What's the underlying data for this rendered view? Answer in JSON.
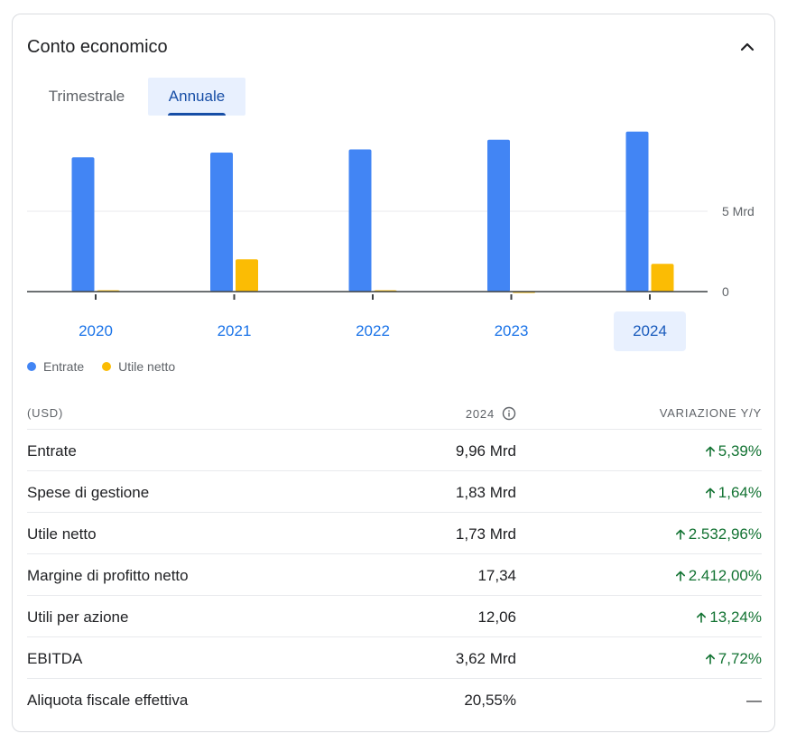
{
  "card": {
    "title": "Conto economico"
  },
  "tabs": [
    {
      "label": "Trimestrale",
      "selected": false
    },
    {
      "label": "Annuale",
      "selected": true
    }
  ],
  "chart_data": {
    "type": "bar",
    "categories": [
      "2020",
      "2021",
      "2022",
      "2023",
      "2024"
    ],
    "selected_category": "2024",
    "series": [
      {
        "name": "Entrate",
        "color": "#4285f4",
        "values": [
          8.36,
          8.65,
          8.85,
          9.45,
          9.96
        ]
      },
      {
        "name": "Utile netto",
        "color": "#fbbc04",
        "values": [
          0.02,
          2.01,
          0.02,
          -0.07,
          1.73
        ]
      }
    ],
    "y_ticks": [
      {
        "value": 0,
        "label": "0"
      },
      {
        "value": 5,
        "label": "5 Mrd"
      }
    ],
    "ylim": [
      -0.2,
      10.5
    ],
    "grid": true
  },
  "legend": [
    {
      "label": "Entrate",
      "color": "#4285f4"
    },
    {
      "label": "Utile netto",
      "color": "#fbbc04"
    }
  ],
  "table": {
    "header": {
      "label": "(USD)",
      "year": "2024",
      "change": "VARIAZIONE Y/Y"
    },
    "rows": [
      {
        "label": "Entrate",
        "value": "9,96 Mrd",
        "change": "5,39%",
        "direction": "up"
      },
      {
        "label": "Spese di gestione",
        "value": "1,83 Mrd",
        "change": "1,64%",
        "direction": "up"
      },
      {
        "label": "Utile netto",
        "value": "1,73 Mrd",
        "change": "2.532,96%",
        "direction": "up"
      },
      {
        "label": "Margine di profitto netto",
        "value": "17,34",
        "change": "2.412,00%",
        "direction": "up"
      },
      {
        "label": "Utili per azione",
        "value": "12,06",
        "change": "13,24%",
        "direction": "up"
      },
      {
        "label": "EBITDA",
        "value": "3,62 Mrd",
        "change": "7,72%",
        "direction": "up"
      },
      {
        "label": "Aliquota fiscale effettiva",
        "value": "20,55%",
        "change": "—",
        "direction": "none"
      }
    ]
  }
}
